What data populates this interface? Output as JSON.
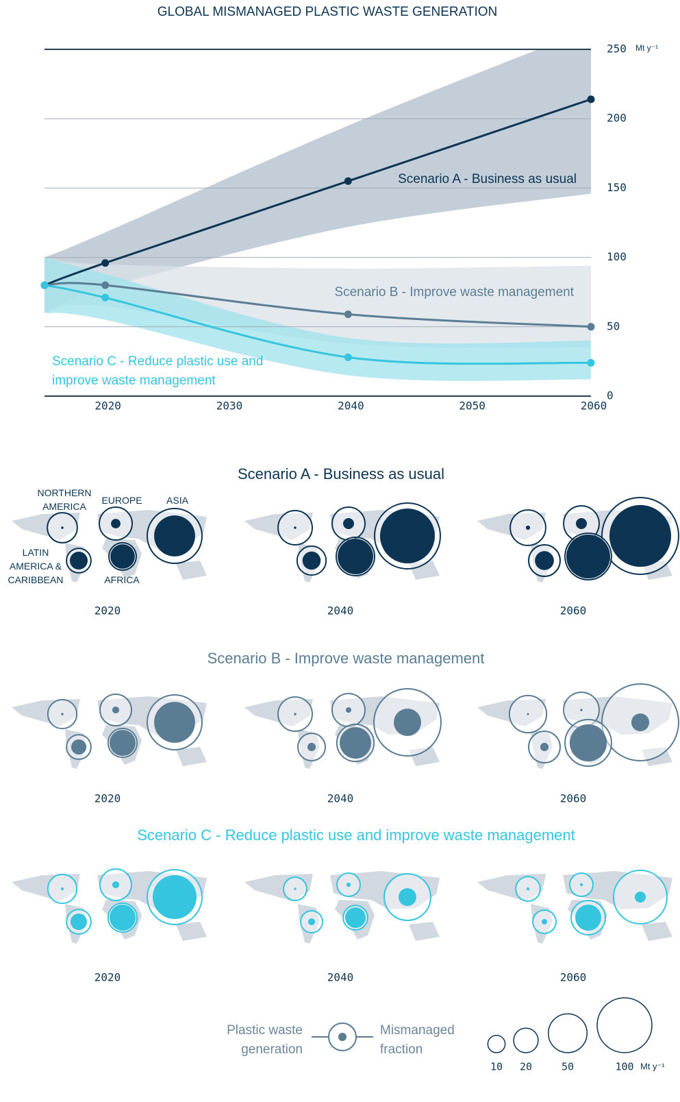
{
  "chart_data": [
    {
      "type": "line",
      "title": "GLOBAL MISMANAGED PLASTIC WASTE GENERATION",
      "x": [
        2015,
        2020,
        2040,
        2060
      ],
      "xlim": [
        2015,
        2060
      ],
      "xticks": [
        2020,
        2030,
        2040,
        2050,
        2060
      ],
      "ylim": [
        0,
        250
      ],
      "yticks": [
        0,
        50,
        100,
        150,
        200,
        250
      ],
      "y_unit": "Mt y⁻¹",
      "grid": true,
      "series": [
        {
          "name": "Scenario A - Business as usual",
          "color": "#0d3553",
          "band_color": "#b9c5d1",
          "values": [
            80,
            96,
            155,
            214
          ],
          "band_lower": [
            60,
            78,
            122,
            146
          ],
          "band_upper": [
            100,
            118,
            195,
            265
          ]
        },
        {
          "name": "Scenario B - Improve waste management",
          "color": "#5b7d93",
          "band_color": "#dbe2e8",
          "values": [
            80,
            80,
            59,
            50
          ],
          "band_lower": [
            60,
            65,
            38,
            35
          ],
          "band_upper": [
            100,
            95,
            92,
            94
          ]
        },
        {
          "name": "Scenario C - Reduce plastic use and improve waste management",
          "color": "#35c5de",
          "band_color": "#9fe1ec",
          "values": [
            80,
            71,
            28,
            24
          ],
          "band_lower": [
            60,
            55,
            15,
            12
          ],
          "band_upper": [
            100,
            88,
            42,
            40
          ]
        }
      ]
    },
    {
      "type": "bubble_map",
      "regions": [
        "NORTHERN AMERICA",
        "EUROPE",
        "ASIA",
        "LATIN AMERICA & CARIBBEAN",
        "AFRICA"
      ],
      "panels": [
        {
          "title": "Scenario A - Business as usual",
          "color": "#0d3553",
          "years": [
            {
              "year": 2020,
              "generation": [
                30,
                36,
                100,
                20,
                25
              ],
              "mismanaged": [
                0.2,
                3,
                56,
                10.6,
                20
              ]
            },
            {
              "year": 2040,
              "generation": [
                39,
                36,
                144,
                28,
                49
              ],
              "mismanaged": [
                0.2,
                4,
                100,
                11,
                42
              ]
            },
            {
              "year": 2060,
              "generation": [
                42,
                42,
                196,
                33,
                72
              ],
              "mismanaged": [
                0.6,
                4,
                127,
                12,
                64
              ]
            }
          ]
        },
        {
          "title": "Scenario B - Improve waste management",
          "color": "#5b7d93",
          "years": [
            {
              "year": 2020,
              "generation": [
                28,
                33,
                100,
                20,
                28
              ],
              "mismanaged": [
                0.2,
                1.6,
                56,
                7.6,
                22.6
              ]
            },
            {
              "year": 2040,
              "generation": [
                39,
                36,
                150,
                25,
                46
              ],
              "mismanaged": [
                0.2,
                1,
                25,
                2.3,
                33
              ]
            },
            {
              "year": 2060,
              "generation": [
                46,
                42,
                196,
                33,
                72
              ],
              "mismanaged": [
                0.1,
                0.2,
                10.6,
                2.3,
                46
              ]
            }
          ]
        },
        {
          "title": "Scenario C - Reduce plastic use and improve waste management",
          "color": "#35c5de",
          "years": [
            {
              "year": 2020,
              "generation": [
                28,
                33,
                100,
                20,
                28
              ],
              "mismanaged": [
                0.3,
                1.6,
                64,
                9,
                22.6
              ]
            },
            {
              "year": 2040,
              "generation": [
                18,
                18,
                72,
                16,
                20
              ],
              "mismanaged": [
                0.2,
                0.6,
                10.6,
                1.6,
                14
              ]
            },
            {
              "year": 2060,
              "generation": [
                20,
                18,
                95,
                18,
                39
              ],
              "mismanaged": [
                0.3,
                0.3,
                4,
                1,
                22.6
              ]
            }
          ]
        }
      ],
      "legend": {
        "generation_label": "Plastic waste generation",
        "mismanaged_label": "Mismanaged fraction",
        "sizes": [
          10,
          20,
          50,
          100
        ],
        "unit": "Mt y⁻¹"
      }
    }
  ]
}
